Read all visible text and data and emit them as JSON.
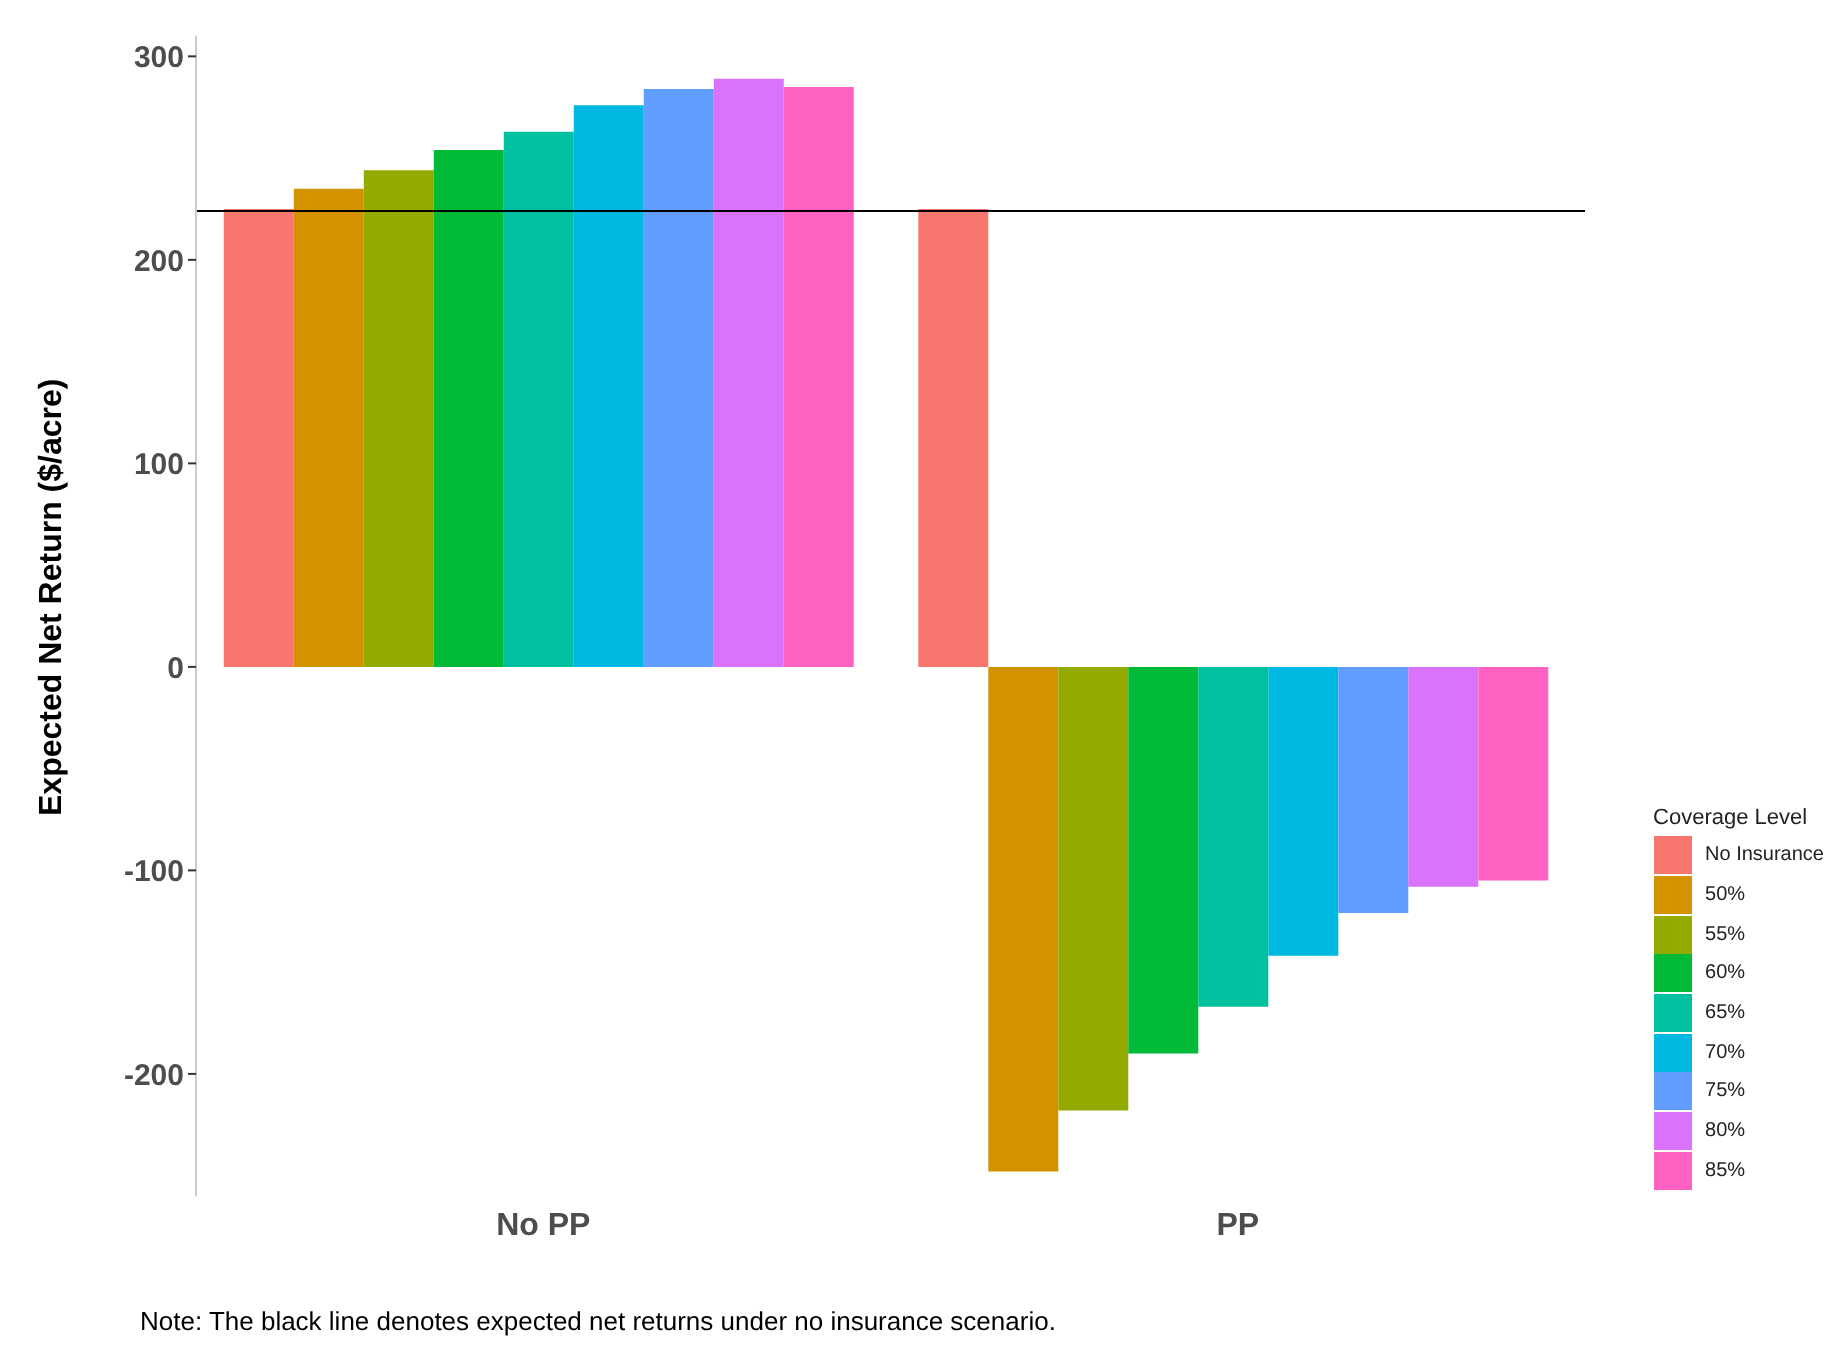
{
  "chart_data": {
    "type": "bar",
    "ylabel": "Expected Net Return ($/acre)",
    "legend_title": "Coverage Level",
    "categories": [
      "No PP",
      "PP"
    ],
    "series": [
      {
        "name": "No Insurance",
        "color": "#f8766d",
        "values": [
          225,
          225
        ]
      },
      {
        "name": "50%",
        "color": "#d39200",
        "values": [
          235,
          -248
        ]
      },
      {
        "name": "55%",
        "color": "#93aa00",
        "values": [
          244,
          -218
        ]
      },
      {
        "name": "60%",
        "color": "#00ba38",
        "values": [
          254,
          -190
        ]
      },
      {
        "name": "65%",
        "color": "#00c19f",
        "values": [
          263,
          -167
        ]
      },
      {
        "name": "70%",
        "color": "#00b9e3",
        "values": [
          276,
          -142
        ]
      },
      {
        "name": "75%",
        "color": "#619cff",
        "values": [
          284,
          -121
        ]
      },
      {
        "name": "80%",
        "color": "#db72fb",
        "values": [
          289,
          -108
        ]
      },
      {
        "name": "85%",
        "color": "#ff61c3",
        "values": [
          285,
          -105
        ]
      }
    ],
    "ylim": [
      -260,
      310
    ],
    "yticks": [
      -200,
      -100,
      0,
      100,
      200,
      300
    ],
    "legend": "right",
    "ref_lines": [
      {
        "axis": "y",
        "value": 224,
        "color": "#000000"
      }
    ],
    "annotations": [
      "Note: The black line denotes expected net returns under no insurance scenario."
    ]
  }
}
